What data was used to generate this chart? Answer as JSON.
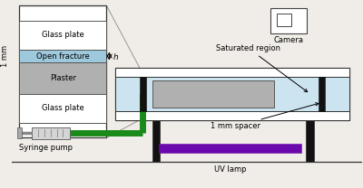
{
  "bg_color": "#f0ede8",
  "colors": {
    "glass": "#ffffff",
    "open_fracture": "#9ec8dc",
    "plaster": "#b0b0b0",
    "black": "#111111",
    "green": "#1a8a1a",
    "purple": "#6a0aac",
    "light_blue": "#cce4f0",
    "gray_plate": "#c0c0c0",
    "white": "#ffffff",
    "dark_gray": "#555555"
  },
  "labels": {
    "glass_plate": "Glass plate",
    "open_fracture": "Open fracture",
    "plaster": "Plaster",
    "one_mm": "1 mm",
    "saturated_region": "Saturated region",
    "one_mm_spacer": "1 mm spacer",
    "syringe_pump": "Syringe pump",
    "uv_lamp": "UV lamp",
    "camera": "Camera"
  },
  "fontsize": 6.0
}
